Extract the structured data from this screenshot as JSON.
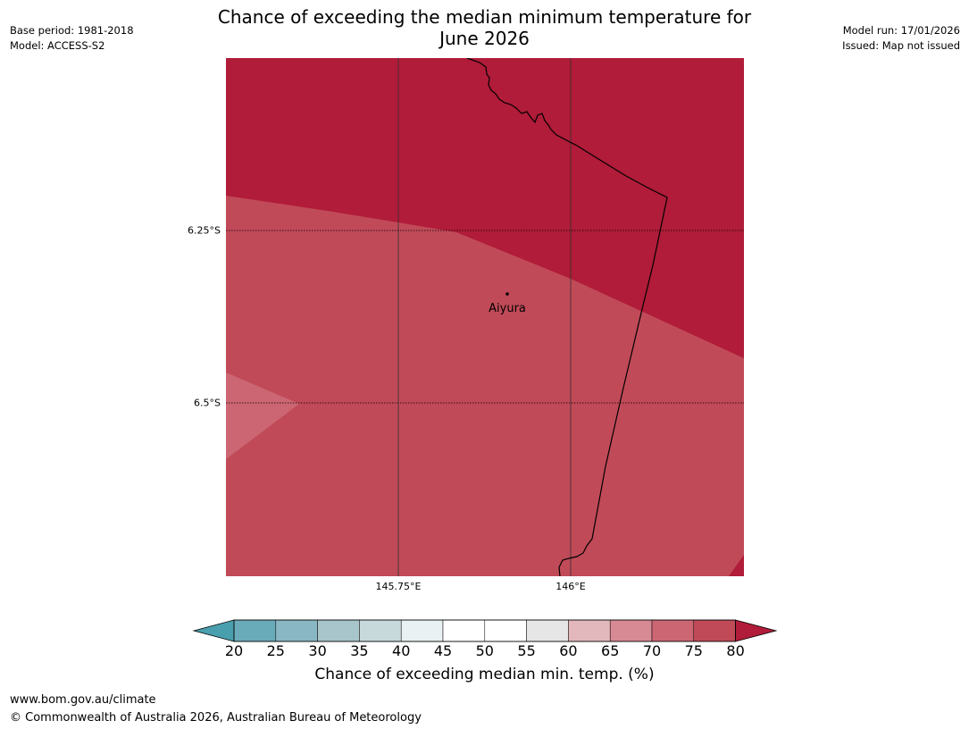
{
  "meta": {
    "base_period": "Base period: 1981-2018",
    "model": "Model: ACCESS-S2",
    "model_run": "Model run: 17/01/2026",
    "issued": "Issued: Map not issued"
  },
  "title": {
    "line1": "Chance of exceeding the median minimum temperature for",
    "line2": "June 2026"
  },
  "map": {
    "place": "Aiyura",
    "lat_labels": [
      "6.25°S",
      "6.5°S"
    ],
    "lon_labels": [
      "145.75°E",
      "146°E"
    ]
  },
  "colorbar": {
    "ticks": [
      "20",
      "25",
      "30",
      "35",
      "40",
      "45",
      "50",
      "55",
      "60",
      "65",
      "70",
      "75",
      "80"
    ],
    "colors": [
      "#6aabb9",
      "#8ab7c4",
      "#a7c5cb",
      "#c8d9dc",
      "#e9f1f2",
      "#ffffff",
      "#ffffff",
      "#e6e6e6",
      "#e3b8bd",
      "#d88a94",
      "#cc6673",
      "#c14a58"
    ],
    "under_color": "#4a9fae",
    "over_color": "#b01c39",
    "label": "Chance of exceeding median min. temp. (%)"
  },
  "colors": {
    "dark_red": "#b01c39",
    "mid_red": "#c14a58",
    "light_red": "#cc6673"
  },
  "footer": {
    "url": "www.bom.gov.au/climate",
    "copyright": "© Commonwealth of Australia 2026, Australian Bureau of Meteorology"
  }
}
